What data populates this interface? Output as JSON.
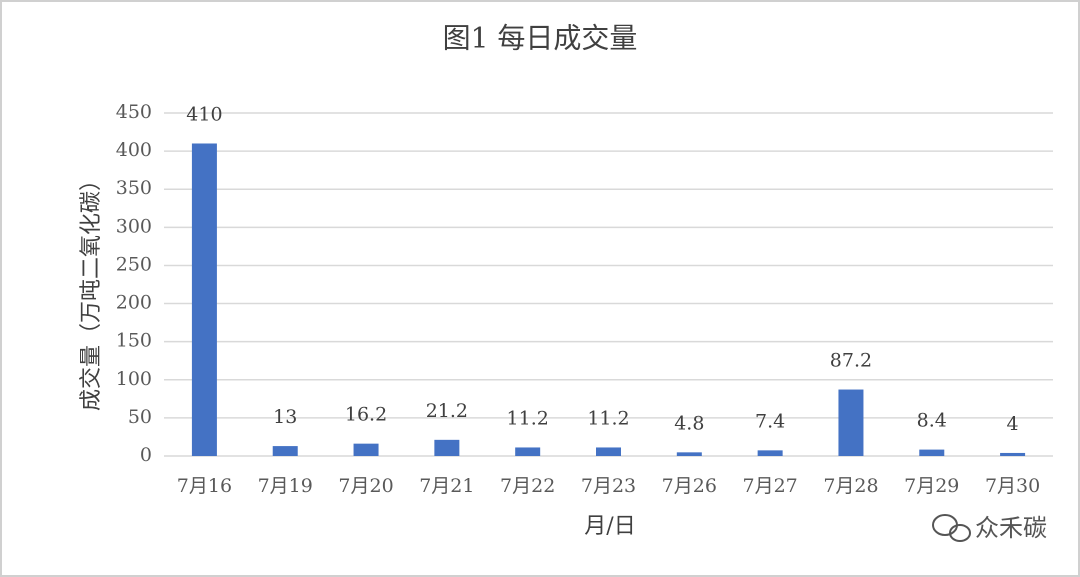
{
  "chart_data": {
    "type": "bar",
    "title": "图1 每日成交量",
    "x_label": "月/日",
    "y_label": "成交量（万吨二氧化碳）",
    "categories": [
      "7月16",
      "7月19",
      "7月20",
      "7月21",
      "7月22",
      "7月23",
      "7月26",
      "7月27",
      "7月28",
      "7月29",
      "7月30"
    ],
    "values": [
      410,
      13,
      16.2,
      21.2,
      11.2,
      11.2,
      4.8,
      7.4,
      87.2,
      8.4,
      4
    ],
    "color": "#4472c4",
    "ylim": [
      0,
      450
    ],
    "yticks": [
      0,
      50,
      100,
      150,
      200,
      250,
      300,
      350,
      400,
      450
    ],
    "grid": true,
    "watermark": "众禾碳"
  }
}
